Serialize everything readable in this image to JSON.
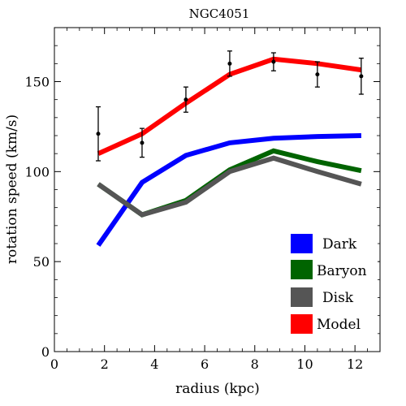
{
  "chart_data": {
    "type": "line",
    "title": "NGC4051",
    "xlabel": "radius (kpc)",
    "ylabel": "rotation speed (km/s)",
    "xlim": [
      0,
      13
    ],
    "ylim": [
      0,
      180
    ],
    "xticks": [
      0,
      2,
      4,
      6,
      8,
      10,
      12
    ],
    "yticks": [
      0,
      50,
      100,
      150
    ],
    "xtick_labels": [
      "0",
      "2",
      "4",
      "6",
      "8",
      "10",
      "12"
    ],
    "ytick_labels": [
      "0",
      "50",
      "100",
      "150"
    ],
    "grid": false,
    "legend_position": "bottom-right",
    "x": [
      1.75,
      3.5,
      5.25,
      7.0,
      8.75,
      10.5,
      12.25
    ],
    "series": [
      {
        "name": "Dark",
        "color": "#0000ff",
        "values": [
          59,
          94,
          109,
          116,
          118.5,
          119.5,
          120
        ]
      },
      {
        "name": "Baryon",
        "color": "#006400",
        "values": [
          93,
          76,
          84,
          101,
          111.5,
          105.5,
          100.5
        ]
      },
      {
        "name": "Disk",
        "color": "#555555",
        "values": [
          93,
          76,
          83,
          100,
          107.5,
          100,
          93
        ]
      },
      {
        "name": "Model",
        "color": "#ff0000",
        "values": [
          110,
          121,
          138,
          154,
          162.5,
          160,
          156.5
        ]
      }
    ],
    "observed": {
      "color": "#000000",
      "points": [
        {
          "x": 1.75,
          "y": 121,
          "err_low": 15,
          "err_high": 15
        },
        {
          "x": 3.5,
          "y": 116,
          "err_low": 8,
          "err_high": 8
        },
        {
          "x": 5.25,
          "y": 140,
          "err_low": 7,
          "err_high": 7
        },
        {
          "x": 7.0,
          "y": 160,
          "err_low": 7,
          "err_high": 7
        },
        {
          "x": 8.75,
          "y": 161,
          "err_low": 5,
          "err_high": 5
        },
        {
          "x": 10.5,
          "y": 154,
          "err_low": 7,
          "err_high": 7
        },
        {
          "x": 12.25,
          "y": 153,
          "err_low": 10,
          "err_high": 10
        }
      ]
    }
  }
}
